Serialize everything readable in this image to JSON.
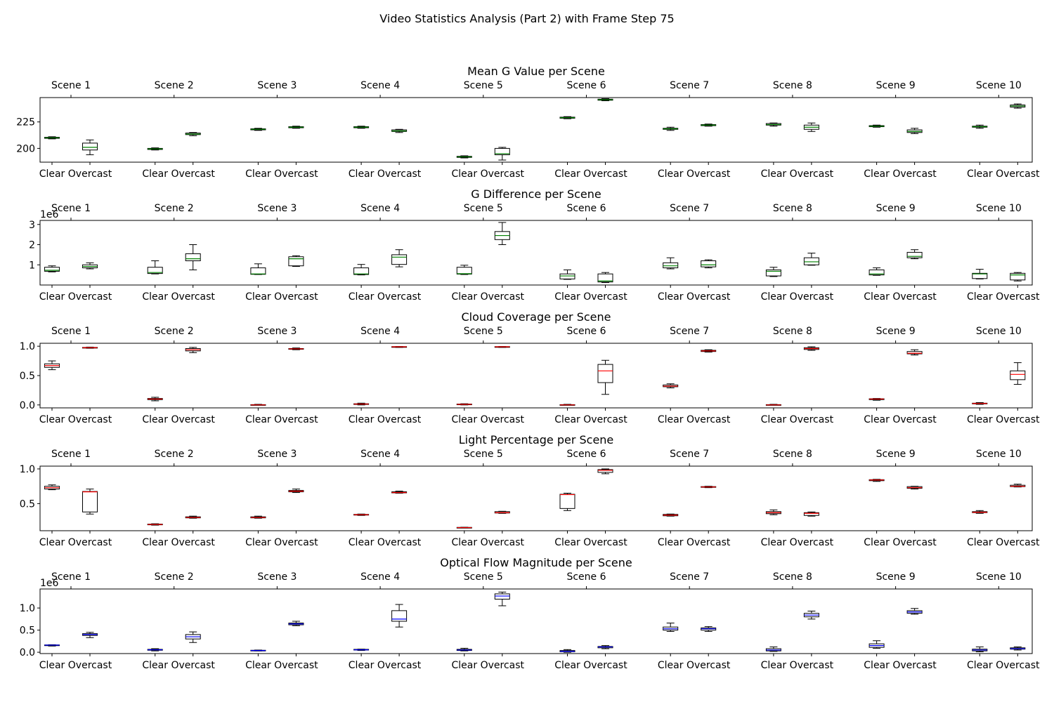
{
  "suptitle": "Video Statistics Analysis (Part 2) with Frame Step 75",
  "chart_data": [
    {
      "type": "box",
      "title": "Mean G Value per Scene",
      "scenes": [
        "Scene 1",
        "Scene 2",
        "Scene 3",
        "Scene 4",
        "Scene 5",
        "Scene 6",
        "Scene 7",
        "Scene 8",
        "Scene 9",
        "Scene 10"
      ],
      "groups": [
        "Clear",
        "Overcast"
      ],
      "median_color": "#008000",
      "ylim": [
        187,
        248
      ],
      "yticks": [
        200,
        225
      ],
      "multiplier": "",
      "boxes": [
        [
          [
            209,
            209.5,
            210,
            210.5,
            211
          ],
          [
            194,
            198.5,
            201,
            205,
            208
          ]
        ],
        [
          [
            198.5,
            199,
            199.5,
            200,
            200.5
          ],
          [
            212,
            213,
            213.5,
            214.5,
            215
          ]
        ],
        [
          [
            217,
            217.5,
            218,
            218.5,
            219
          ],
          [
            219,
            219.5,
            220,
            220.5,
            221
          ]
        ],
        [
          [
            219,
            219.5,
            220,
            220.5,
            221
          ],
          [
            215,
            216,
            216.5,
            217.5,
            218
          ]
        ],
        [
          [
            191,
            191.5,
            192,
            192.5,
            193
          ],
          [
            189,
            194,
            195,
            200,
            201
          ]
        ],
        [
          [
            228,
            228.5,
            229,
            229.5,
            230
          ],
          [
            245,
            245.5,
            246,
            246.5,
            247
          ]
        ],
        [
          [
            217,
            218,
            218.5,
            219,
            220
          ],
          [
            221,
            221.5,
            222,
            222.5,
            223
          ]
        ],
        [
          [
            221,
            222,
            222.5,
            223.5,
            224
          ],
          [
            216,
            218,
            220,
            222,
            224
          ]
        ],
        [
          [
            220,
            220.5,
            221,
            221.5,
            222
          ],
          [
            214,
            215,
            216,
            217.5,
            219
          ]
        ],
        [
          [
            219,
            220,
            220.5,
            221,
            222
          ],
          [
            238,
            239,
            240,
            241,
            242
          ]
        ]
      ]
    },
    {
      "type": "box",
      "title": "G Difference per Scene",
      "scenes": [
        "Scene 1",
        "Scene 2",
        "Scene 3",
        "Scene 4",
        "Scene 5",
        "Scene 6",
        "Scene 7",
        "Scene 8",
        "Scene 9",
        "Scene 10"
      ],
      "groups": [
        "Clear",
        "Overcast"
      ],
      "median_color": "#008000",
      "ylim": [
        0,
        3.2
      ],
      "yticks": [
        1,
        2,
        3
      ],
      "multiplier": "1e6",
      "boxes": [
        [
          [
            0.65,
            0.68,
            0.73,
            0.88,
            0.95
          ],
          [
            0.8,
            0.85,
            0.92,
            1.0,
            1.1
          ]
        ],
        [
          [
            0.55,
            0.57,
            0.62,
            0.88,
            1.2
          ],
          [
            0.75,
            1.2,
            1.3,
            1.55,
            2.0
          ]
        ],
        [
          [
            0.52,
            0.53,
            0.55,
            0.85,
            1.05
          ],
          [
            0.92,
            0.95,
            1.3,
            1.4,
            1.45
          ]
        ],
        [
          [
            0.5,
            0.52,
            0.55,
            0.85,
            1.02
          ],
          [
            0.9,
            1.02,
            1.38,
            1.5,
            1.75
          ]
        ],
        [
          [
            0.52,
            0.54,
            0.56,
            0.88,
            0.98
          ],
          [
            2.0,
            2.25,
            2.45,
            2.65,
            3.1
          ]
        ],
        [
          [
            0.28,
            0.3,
            0.45,
            0.55,
            0.75
          ],
          [
            0.12,
            0.15,
            0.2,
            0.55,
            0.62
          ]
        ],
        [
          [
            0.8,
            0.85,
            0.95,
            1.1,
            1.35
          ],
          [
            0.85,
            0.9,
            1.0,
            1.2,
            1.25
          ]
        ],
        [
          [
            0.42,
            0.45,
            0.68,
            0.75,
            0.88
          ],
          [
            0.98,
            1.0,
            1.15,
            1.35,
            1.58
          ]
        ],
        [
          [
            0.48,
            0.5,
            0.55,
            0.75,
            0.85
          ],
          [
            1.3,
            1.35,
            1.42,
            1.62,
            1.75
          ]
        ],
        [
          [
            0.3,
            0.32,
            0.55,
            0.58,
            0.78
          ],
          [
            0.2,
            0.25,
            0.5,
            0.58,
            0.62
          ]
        ]
      ]
    },
    {
      "type": "box",
      "title": "Cloud Coverage per Scene",
      "scenes": [
        "Scene 1",
        "Scene 2",
        "Scene 3",
        "Scene 4",
        "Scene 5",
        "Scene 6",
        "Scene 7",
        "Scene 8",
        "Scene 9",
        "Scene 10"
      ],
      "groups": [
        "Clear",
        "Overcast"
      ],
      "median_color": "#ff0000",
      "ylim": [
        -0.05,
        1.05
      ],
      "yticks": [
        0.0,
        0.5,
        1.0
      ],
      "multiplier": "",
      "boxes": [
        [
          [
            0.6,
            0.64,
            0.67,
            0.7,
            0.75
          ],
          [
            0.965,
            0.97,
            0.975,
            0.98,
            0.985
          ]
        ],
        [
          [
            0.07,
            0.09,
            0.1,
            0.11,
            0.13
          ],
          [
            0.89,
            0.92,
            0.94,
            0.96,
            0.98
          ]
        ],
        [
          [
            0.0,
            0.0,
            0.0,
            0.005,
            0.01
          ],
          [
            0.94,
            0.95,
            0.955,
            0.96,
            0.97
          ]
        ],
        [
          [
            0.0,
            0.01,
            0.015,
            0.02,
            0.03
          ],
          [
            0.98,
            0.985,
            0.99,
            0.993,
            0.995
          ]
        ],
        [
          [
            0.0,
            0.005,
            0.01,
            0.015,
            0.02
          ],
          [
            0.98,
            0.985,
            0.99,
            0.993,
            0.995
          ]
        ],
        [
          [
            0.0,
            0.0,
            0.0,
            0.005,
            0.01
          ],
          [
            0.18,
            0.38,
            0.58,
            0.69,
            0.76
          ]
        ],
        [
          [
            0.29,
            0.31,
            0.32,
            0.34,
            0.36
          ],
          [
            0.9,
            0.91,
            0.92,
            0.93,
            0.94
          ]
        ],
        [
          [
            0.0,
            0.0,
            0.0,
            0.005,
            0.01
          ],
          [
            0.93,
            0.945,
            0.96,
            0.975,
            0.99
          ]
        ],
        [
          [
            0.08,
            0.09,
            0.1,
            0.105,
            0.11
          ],
          [
            0.85,
            0.87,
            0.88,
            0.91,
            0.94
          ]
        ],
        [
          [
            0.01,
            0.02,
            0.025,
            0.03,
            0.04
          ],
          [
            0.35,
            0.43,
            0.52,
            0.58,
            0.72
          ]
        ]
      ]
    },
    {
      "type": "box",
      "title": "Light Percentage per Scene",
      "scenes": [
        "Scene 1",
        "Scene 2",
        "Scene 3",
        "Scene 4",
        "Scene 5",
        "Scene 6",
        "Scene 7",
        "Scene 8",
        "Scene 9",
        "Scene 10"
      ],
      "groups": [
        "Clear",
        "Overcast"
      ],
      "median_color": "#ff0000",
      "ylim": [
        0.11,
        1.04
      ],
      "yticks": [
        0.5,
        1.0
      ],
      "multiplier": "",
      "boxes": [
        [
          [
            0.7,
            0.71,
            0.73,
            0.75,
            0.77
          ],
          [
            0.35,
            0.38,
            0.67,
            0.675,
            0.71
          ]
        ],
        [
          [
            0.19,
            0.195,
            0.2,
            0.205,
            0.21
          ],
          [
            0.29,
            0.295,
            0.3,
            0.31,
            0.32
          ]
        ],
        [
          [
            0.29,
            0.295,
            0.3,
            0.31,
            0.32
          ],
          [
            0.66,
            0.67,
            0.68,
            0.69,
            0.71
          ]
        ],
        [
          [
            0.33,
            0.335,
            0.34,
            0.345,
            0.35
          ],
          [
            0.65,
            0.655,
            0.66,
            0.67,
            0.68
          ]
        ],
        [
          [
            0.15,
            0.153,
            0.155,
            0.158,
            0.16
          ],
          [
            0.36,
            0.365,
            0.37,
            0.385,
            0.39
          ]
        ],
        [
          [
            0.4,
            0.43,
            0.63,
            0.635,
            0.65
          ],
          [
            0.93,
            0.95,
            0.98,
            0.99,
            1.0
          ]
        ],
        [
          [
            0.32,
            0.325,
            0.335,
            0.345,
            0.35
          ],
          [
            0.73,
            0.735,
            0.74,
            0.745,
            0.75
          ]
        ],
        [
          [
            0.34,
            0.355,
            0.37,
            0.385,
            0.41
          ],
          [
            0.32,
            0.33,
            0.36,
            0.37,
            0.38
          ]
        ],
        [
          [
            0.82,
            0.83,
            0.84,
            0.845,
            0.85
          ],
          [
            0.71,
            0.72,
            0.73,
            0.745,
            0.75
          ]
        ],
        [
          [
            0.36,
            0.37,
            0.375,
            0.385,
            0.4
          ],
          [
            0.74,
            0.745,
            0.75,
            0.765,
            0.78
          ]
        ]
      ]
    },
    {
      "type": "box",
      "title": "Optical Flow Magnitude per Scene",
      "scenes": [
        "Scene 1",
        "Scene 2",
        "Scene 3",
        "Scene 4",
        "Scene 5",
        "Scene 6",
        "Scene 7",
        "Scene 8",
        "Scene 9",
        "Scene 10"
      ],
      "groups": [
        "Clear",
        "Overcast"
      ],
      "median_color": "#0000ff",
      "ylim": [
        -0.03,
        1.43
      ],
      "yticks": [
        0.0,
        0.5,
        1.0
      ],
      "multiplier": "1e6",
      "boxes": [
        [
          [
            0.14,
            0.15,
            0.16,
            0.165,
            0.17
          ],
          [
            0.33,
            0.38,
            0.4,
            0.42,
            0.45
          ]
        ],
        [
          [
            0.03,
            0.045,
            0.055,
            0.065,
            0.08
          ],
          [
            0.22,
            0.3,
            0.35,
            0.4,
            0.46
          ]
        ],
        [
          [
            0.03,
            0.035,
            0.04,
            0.045,
            0.05
          ],
          [
            0.6,
            0.62,
            0.64,
            0.66,
            0.7
          ]
        ],
        [
          [
            0.04,
            0.05,
            0.055,
            0.065,
            0.07
          ],
          [
            0.57,
            0.7,
            0.75,
            0.94,
            1.08
          ]
        ],
        [
          [
            0.03,
            0.04,
            0.05,
            0.065,
            0.09
          ],
          [
            1.05,
            1.2,
            1.27,
            1.32,
            1.36
          ]
        ],
        [
          [
            0.0,
            0.01,
            0.02,
            0.04,
            0.06
          ],
          [
            0.08,
            0.1,
            0.12,
            0.13,
            0.15
          ]
        ],
        [
          [
            0.47,
            0.5,
            0.53,
            0.57,
            0.66
          ],
          [
            0.47,
            0.5,
            0.53,
            0.55,
            0.58
          ]
        ],
        [
          [
            0.02,
            0.03,
            0.05,
            0.08,
            0.12
          ],
          [
            0.75,
            0.8,
            0.84,
            0.88,
            0.93
          ]
        ],
        [
          [
            0.09,
            0.11,
            0.15,
            0.19,
            0.26
          ],
          [
            0.86,
            0.88,
            0.91,
            0.94,
            0.99
          ]
        ],
        [
          [
            0.01,
            0.03,
            0.05,
            0.07,
            0.12
          ],
          [
            0.05,
            0.07,
            0.08,
            0.1,
            0.12
          ]
        ]
      ]
    }
  ]
}
